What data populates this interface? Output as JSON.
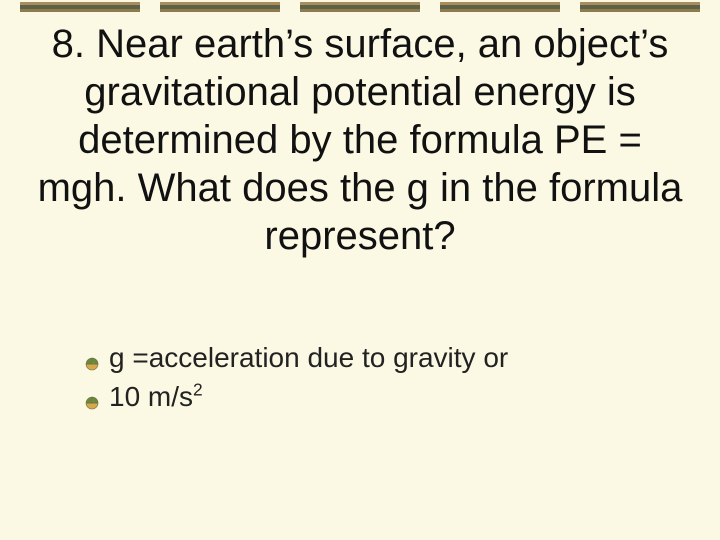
{
  "decor": {
    "block_count": 5,
    "colors": {
      "top": "#a88e5c",
      "mid": "#5c6148",
      "bot": "#8e7c4f"
    }
  },
  "title": "8. Near earth’s surface, an object’s gravitational potential energy is determined by the formula PE = mgh. What does the g in the formula represent?",
  "bullet_icon": {
    "top_fill": "#6a8a3a",
    "bottom_fill": "#d6a84a",
    "stroke": "#6e6e4a"
  },
  "bullets": [
    {
      "text": "g =acceleration due to gravity or",
      "has_super": false
    },
    {
      "text": "10 m/s",
      "has_super": true,
      "super": "2"
    }
  ],
  "background_color": "#fbf9e3",
  "title_fontsize": 40,
  "bullet_fontsize": 28
}
